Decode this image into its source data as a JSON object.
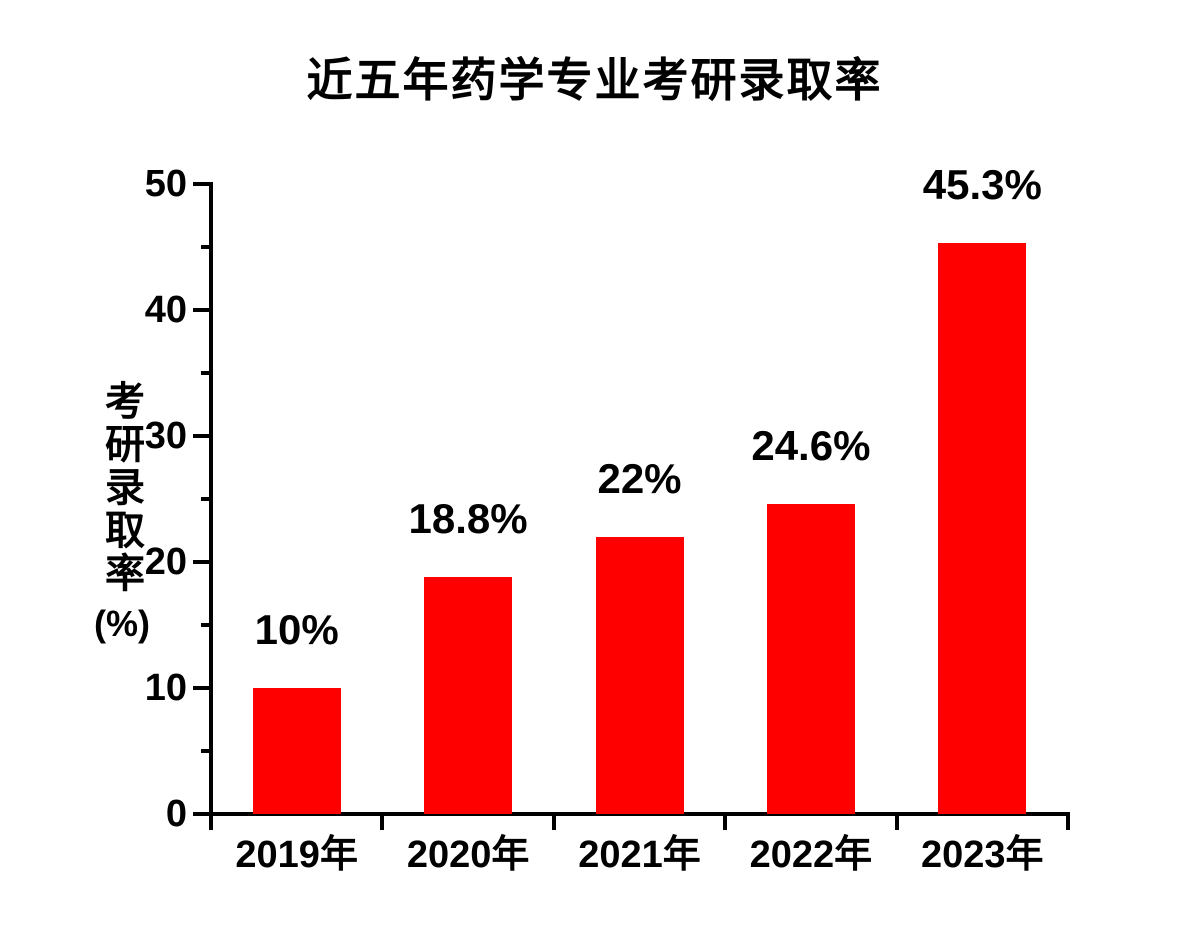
{
  "chart_data": {
    "type": "bar",
    "title": "近五年药学专业考研录取率",
    "categories": [
      "2019年",
      "2020年",
      "2021年",
      "2022年",
      "2023年"
    ],
    "values": [
      10,
      18.8,
      22,
      24.6,
      45.3
    ],
    "value_labels": [
      "10%",
      "18.8%",
      "22%",
      "24.6%",
      "45.3%"
    ],
    "xlabel": "",
    "ylabel": "考研录取率",
    "ylabel_unit": "(%)",
    "ylim": [
      0,
      50
    ],
    "y_major_ticks": [
      0,
      10,
      20,
      30,
      40,
      50
    ],
    "y_minor_ticks": [
      5,
      15,
      25,
      35,
      45
    ],
    "grid": false,
    "legend_position": "none",
    "bar_color": "#ff0000",
    "axis_color": "#000000",
    "text_color": "#000000",
    "background_color": "#ffffff"
  }
}
